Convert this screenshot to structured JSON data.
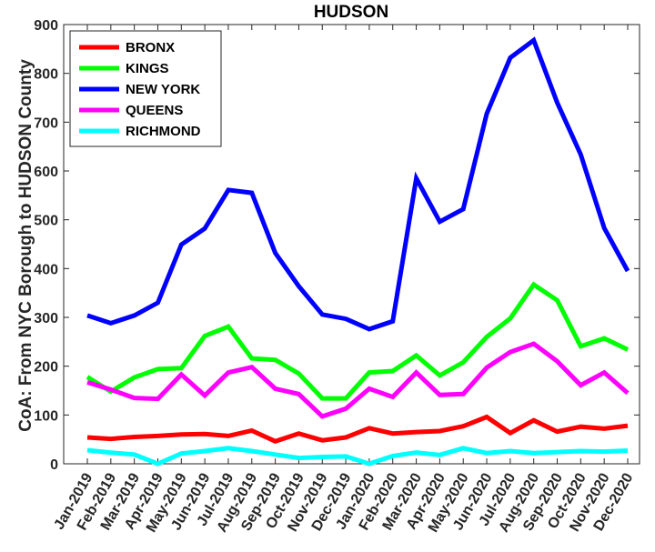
{
  "chart_data": {
    "type": "line",
    "title": "HUDSON",
    "xlabel": "",
    "ylabel": "CoA: From NYC Borough to HUDSON County",
    "ylim": [
      0,
      900
    ],
    "yticks": [
      0,
      100,
      200,
      300,
      400,
      500,
      600,
      700,
      800,
      900
    ],
    "grid": false,
    "legend_position": "top-left",
    "categories": [
      "Jan-2019",
      "Feb-2019",
      "Mar-2019",
      "Apr-2019",
      "May-2019",
      "Jun-2019",
      "Jul-2019",
      "Aug-2019",
      "Sep-2019",
      "Oct-2019",
      "Nov-2019",
      "Dec-2019",
      "Jan-2020",
      "Feb-2020",
      "Mar-2020",
      "Apr-2020",
      "May-2020",
      "Jun-2020",
      "Jul-2020",
      "Aug-2020",
      "Sep-2020",
      "Oct-2020",
      "Nov-2020",
      "Dec-2020"
    ],
    "series": [
      {
        "name": "BRONX",
        "color": "#ff0000",
        "values": [
          54,
          51,
          55,
          57,
          60,
          61,
          57,
          68,
          46,
          62,
          48,
          54,
          73,
          62,
          65,
          67,
          77,
          96,
          63,
          89,
          66,
          76,
          72,
          78
        ]
      },
      {
        "name": "KINGS",
        "color": "#00ff00",
        "values": [
          178,
          148,
          177,
          194,
          196,
          262,
          281,
          216,
          213,
          185,
          134,
          134,
          187,
          190,
          222,
          181,
          208,
          260,
          298,
          367,
          335,
          241,
          257,
          234
        ]
      },
      {
        "name": "NEW YORK",
        "color": "#0000ff",
        "values": [
          304,
          288,
          304,
          330,
          449,
          482,
          561,
          555,
          432,
          364,
          306,
          297,
          276,
          292,
          585,
          496,
          522,
          717,
          832,
          868,
          740,
          634,
          483,
          395
        ]
      },
      {
        "name": "QUEENS",
        "color": "#ff00ff",
        "values": [
          167,
          152,
          135,
          133,
          183,
          140,
          187,
          198,
          154,
          143,
          97,
          113,
          154,
          137,
          187,
          141,
          143,
          197,
          229,
          246,
          210,
          161,
          187,
          145
        ]
      },
      {
        "name": "RICHMOND",
        "color": "#00ffff",
        "values": [
          28,
          23,
          19,
          0,
          21,
          26,
          32,
          26,
          19,
          12,
          14,
          15,
          0,
          16,
          23,
          18,
          32,
          22,
          26,
          22,
          24,
          26,
          25,
          27
        ]
      }
    ]
  }
}
